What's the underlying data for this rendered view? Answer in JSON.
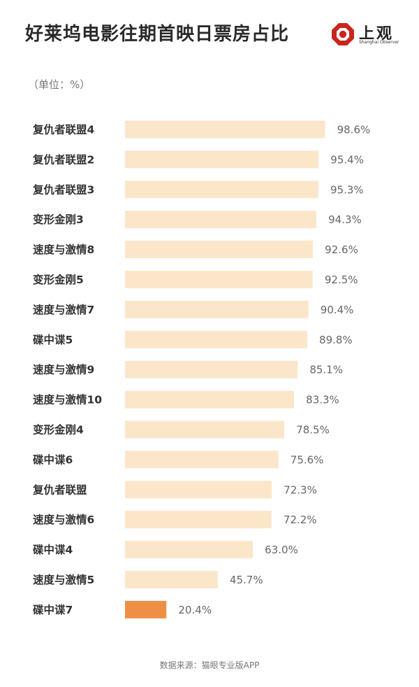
{
  "title": "好莱坞电影往期首映日票房占比",
  "logo": {
    "text": "上观",
    "subtext": "Shanghai Observer"
  },
  "unit_label": "（单位：%）",
  "source": "数据来源：猫眼专业版APP",
  "colors": {
    "bar": "#fbe6c9",
    "highlight": "#ee8f45",
    "text": "#333333",
    "value_text": "#666666",
    "logo_red": "#c8261d"
  },
  "chart_data": {
    "type": "bar",
    "orientation": "horizontal",
    "title": "好莱坞电影往期首映日票房占比",
    "xlabel": "",
    "ylabel": "",
    "xlim": [
      0,
      100
    ],
    "grid": false,
    "unit": "%",
    "categories": [
      "复仇者联盟4",
      "复仇者联盟2",
      "复仇者联盟3",
      "变形金刚3",
      "速度与激情8",
      "变形金刚5",
      "速度与激情7",
      "碟中谍5",
      "速度与激情9",
      "速度与激情10",
      "变形金刚4",
      "碟中谍6",
      "复仇者联盟",
      "速度与激情6",
      "碟中谍4",
      "速度与激情5",
      "碟中谍7"
    ],
    "values": [
      98.6,
      95.4,
      95.3,
      94.3,
      92.6,
      92.5,
      90.4,
      89.8,
      85.1,
      83.3,
      78.5,
      75.6,
      72.3,
      72.2,
      63.0,
      45.7,
      20.4
    ],
    "value_labels": [
      "98.6%",
      "95.4%",
      "95.3%",
      "94.3%",
      "92.6%",
      "92.5%",
      "90.4%",
      "89.8%",
      "85.1%",
      "83.3%",
      "78.5%",
      "75.6%",
      "72.3%",
      "72.2%",
      "63.0%",
      "45.7%",
      "20.4%"
    ],
    "highlight_category": "碟中谍7"
  }
}
